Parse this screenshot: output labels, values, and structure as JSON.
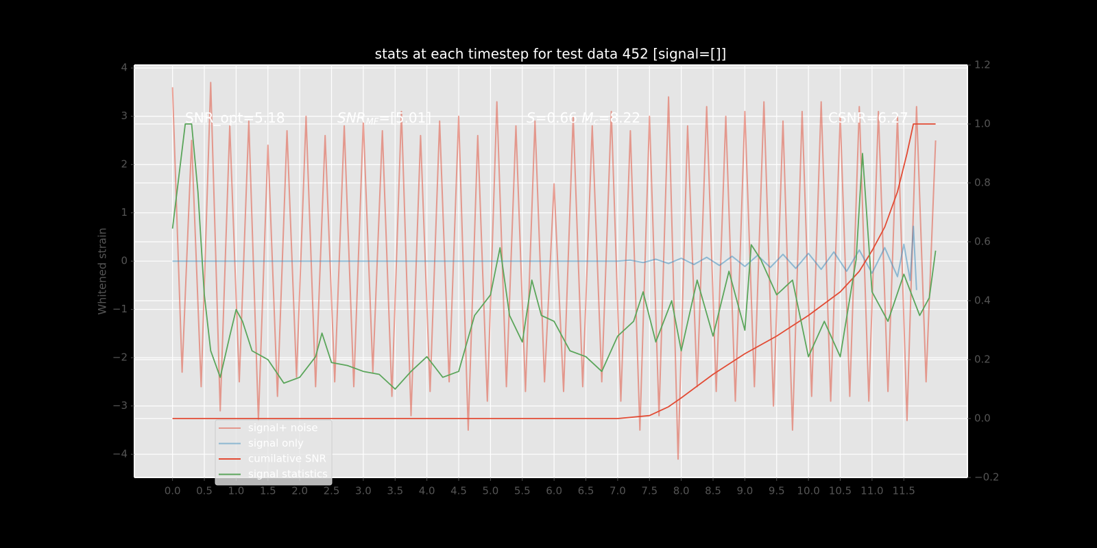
{
  "chart_data": {
    "type": "line",
    "title": "stats at each timestep for test data 452 [signal=[]]",
    "y_label": "Whitened strain",
    "annotations": [
      [
        "SNR_opt=5.18"
      ],
      [
        "SNR",
        "MF",
        "=[5.01]"
      ],
      [
        "S",
        "=0.66  ",
        "M",
        "c",
        "=8.22"
      ],
      [
        "CSNR=6.27"
      ]
    ],
    "xlim": [
      -0.6,
      12.5
    ],
    "ylim": [
      -4.48,
      4.06
    ],
    "y2lim": [
      -0.2,
      1.2
    ],
    "xticks": [
      {
        "value": 0,
        "label": "0.0"
      },
      0.5,
      {
        "value": 1,
        "label": "1.0"
      },
      1.5,
      {
        "value": 2,
        "label": "2.0"
      },
      2.5,
      {
        "value": 3,
        "label": "3.0"
      },
      3.5,
      {
        "value": 4,
        "label": "4.0"
      },
      4.5,
      {
        "value": 5,
        "label": "5.0"
      },
      5.5,
      {
        "value": 6,
        "label": "6.0"
      },
      6.5,
      {
        "value": 7,
        "label": "7.0"
      },
      7.5,
      {
        "value": 8,
        "label": "8.0"
      },
      8.5,
      {
        "value": 9,
        "label": "9.0"
      },
      9.5,
      {
        "value": 10,
        "label": "10.0"
      },
      10.5,
      {
        "value": 11,
        "label": "11.0"
      },
      11.5
    ],
    "yticks": [
      {
        "value": -4,
        "label": "−4"
      },
      {
        "value": -3,
        "label": "−3"
      },
      {
        "value": -2,
        "label": "−2"
      },
      {
        "value": -1,
        "label": "−1"
      },
      0,
      1,
      2,
      3,
      4
    ],
    "y2ticks": [
      {
        "value": -0.2,
        "label": "−0.2"
      },
      {
        "value": 0,
        "label": "0.0"
      },
      0.2,
      0.4,
      0.6,
      0.8,
      {
        "value": 1,
        "label": "1.0"
      },
      1.2
    ],
    "grid": true,
    "legend": "lower left",
    "series": [
      {
        "name": "signal+ noise",
        "color": "#E24A33",
        "alpha": 0.5,
        "x": [
          0,
          0.15,
          0.3,
          0.45,
          0.6,
          0.75,
          0.9,
          1.05,
          1.2,
          1.35,
          1.5,
          1.65,
          1.8,
          1.95,
          2.1,
          2.25,
          2.4,
          2.55,
          2.7,
          2.85,
          3.0,
          3.15,
          3.3,
          3.45,
          3.6,
          3.75,
          3.9,
          4.05,
          4.2,
          4.35,
          4.5,
          4.65,
          4.8,
          4.95,
          5.1,
          5.25,
          5.4,
          5.55,
          5.7,
          5.85,
          6.0,
          6.15,
          6.3,
          6.45,
          6.6,
          6.75,
          6.9,
          7.05,
          7.2,
          7.35,
          7.5,
          7.65,
          7.8,
          7.95,
          8.1,
          8.25,
          8.4,
          8.55,
          8.7,
          8.85,
          9.0,
          9.15,
          9.3,
          9.45,
          9.6,
          9.75,
          9.9,
          10.05,
          10.2,
          10.35,
          10.5,
          10.65,
          10.8,
          10.95,
          11.1,
          11.25,
          11.4,
          11.55,
          11.7,
          11.85,
          12.0
        ],
        "values": [
          3.6,
          -2.3,
          2.5,
          -2.6,
          3.7,
          -3.1,
          2.8,
          -2.5,
          2.9,
          -3.3,
          2.4,
          -2.8,
          2.7,
          -2.4,
          3.0,
          -2.6,
          2.6,
          -2.5,
          2.8,
          -2.6,
          2.9,
          -2.3,
          2.7,
          -2.8,
          3.1,
          -3.2,
          2.6,
          -2.7,
          2.9,
          -2.5,
          3.0,
          -3.5,
          2.6,
          -2.9,
          3.3,
          -2.6,
          2.8,
          -2.7,
          2.9,
          -2.5,
          1.6,
          -2.7,
          3.0,
          -2.6,
          2.8,
          -2.5,
          3.1,
          -2.9,
          2.7,
          -3.5,
          3.0,
          -3.2,
          3.4,
          -4.1,
          2.8,
          -2.6,
          3.2,
          -2.7,
          3.0,
          -2.9,
          3.1,
          -2.6,
          3.3,
          -3.0,
          2.9,
          -3.5,
          3.1,
          -2.8,
          3.3,
          -2.9,
          3.0,
          -2.8,
          3.2,
          -2.9,
          3.1,
          -2.7,
          3.0,
          -3.3,
          3.2,
          -2.5,
          2.5
        ]
      },
      {
        "name": "signal only",
        "color": "#348ABD",
        "alpha": 0.5,
        "x": [
          0,
          7.0,
          7.2,
          7.4,
          7.6,
          7.8,
          8.0,
          8.2,
          8.4,
          8.6,
          8.8,
          9.0,
          9.2,
          9.4,
          9.6,
          9.8,
          10.0,
          10.2,
          10.4,
          10.6,
          10.8,
          11.0,
          11.2,
          11.4,
          11.5,
          11.6,
          11.65,
          11.7
        ],
        "values": [
          0,
          0,
          0.02,
          -0.03,
          0.04,
          -0.05,
          0.06,
          -0.07,
          0.08,
          -0.09,
          0.1,
          -0.11,
          0.12,
          -0.13,
          0.14,
          -0.15,
          0.16,
          -0.17,
          0.19,
          -0.21,
          0.23,
          -0.25,
          0.28,
          -0.32,
          0.35,
          -0.4,
          0.72,
          -0.6
        ]
      },
      {
        "name": "cumilative SNR",
        "color": "#E24A33",
        "alpha": 1,
        "axis": "y2",
        "x": [
          0,
          7.0,
          7.5,
          7.8,
          8.0,
          8.5,
          9.0,
          9.5,
          10.0,
          10.5,
          10.8,
          11.0,
          11.2,
          11.4,
          11.55,
          11.65,
          12.0
        ],
        "values": [
          0,
          0,
          0.01,
          0.04,
          0.07,
          0.15,
          0.22,
          0.28,
          0.35,
          0.43,
          0.5,
          0.57,
          0.65,
          0.77,
          0.9,
          1.0,
          1.0
        ]
      },
      {
        "name": "signal statistics",
        "color": "#5aa55a",
        "alpha": 1,
        "axis": "y2",
        "x": [
          0,
          0.2,
          0.3,
          0.4,
          0.5,
          0.6,
          0.75,
          0.9,
          1.0,
          1.1,
          1.25,
          1.5,
          1.75,
          2.0,
          2.25,
          2.35,
          2.5,
          2.75,
          3.0,
          3.25,
          3.5,
          3.75,
          4.0,
          4.25,
          4.5,
          4.75,
          5.0,
          5.15,
          5.3,
          5.5,
          5.65,
          5.8,
          6.0,
          6.25,
          6.5,
          6.75,
          7.0,
          7.25,
          7.4,
          7.6,
          7.85,
          8.0,
          8.25,
          8.5,
          8.75,
          9.0,
          9.1,
          9.25,
          9.5,
          9.75,
          10.0,
          10.25,
          10.5,
          10.75,
          10.85,
          11.0,
          11.25,
          11.5,
          11.75,
          11.9,
          12.0
        ],
        "values": [
          0.645,
          1.0,
          1.0,
          0.77,
          0.42,
          0.23,
          0.14,
          0.28,
          0.37,
          0.33,
          0.23,
          0.2,
          0.12,
          0.14,
          0.21,
          0.29,
          0.19,
          0.18,
          0.16,
          0.15,
          0.1,
          0.16,
          0.21,
          0.14,
          0.16,
          0.35,
          0.42,
          0.58,
          0.35,
          0.26,
          0.47,
          0.35,
          0.33,
          0.23,
          0.21,
          0.16,
          0.28,
          0.33,
          0.43,
          0.26,
          0.4,
          0.23,
          0.47,
          0.28,
          0.5,
          0.3,
          0.59,
          0.54,
          0.42,
          0.47,
          0.21,
          0.33,
          0.21,
          0.54,
          0.9,
          0.43,
          0.33,
          0.49,
          0.35,
          0.41,
          0.57
        ]
      }
    ]
  }
}
